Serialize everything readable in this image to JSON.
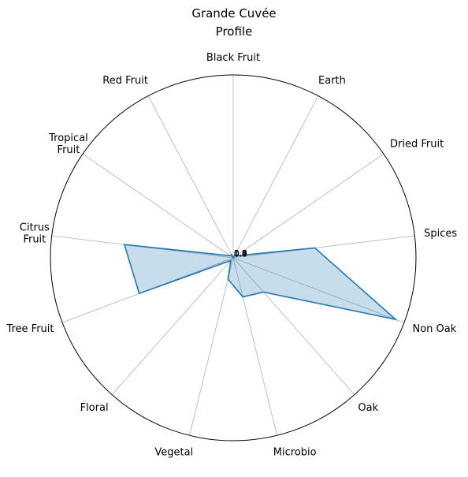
{
  "chart_data": {
    "type": "radar",
    "title_lines": [
      "Grande Cuvée",
      "Profile"
    ],
    "categories": [
      "Black Fruit",
      "Earth",
      "Dried Fruit",
      "Spices",
      "Non Oak",
      "Oak",
      "Microbio",
      "Vegetal",
      "Floral",
      "Tree Fruit",
      "Citrus\nFruit",
      "Tropical\nFruit",
      "Red Fruit"
    ],
    "series": [
      {
        "values": [
          0.0,
          0.02,
          0.02,
          0.45,
          0.95,
          0.25,
          0.22,
          0.12,
          0.02,
          0.55,
          0.6,
          0.02,
          0.02
        ],
        "color": "#1f77b4",
        "fill": "#1f77b4",
        "fill_opacity": 0.25
      }
    ],
    "r_ticks": [
      "0.2",
      "0.4",
      "0.6",
      "0.8",
      "1.0"
    ],
    "rlim": [
      0,
      1
    ],
    "grid": true
  }
}
